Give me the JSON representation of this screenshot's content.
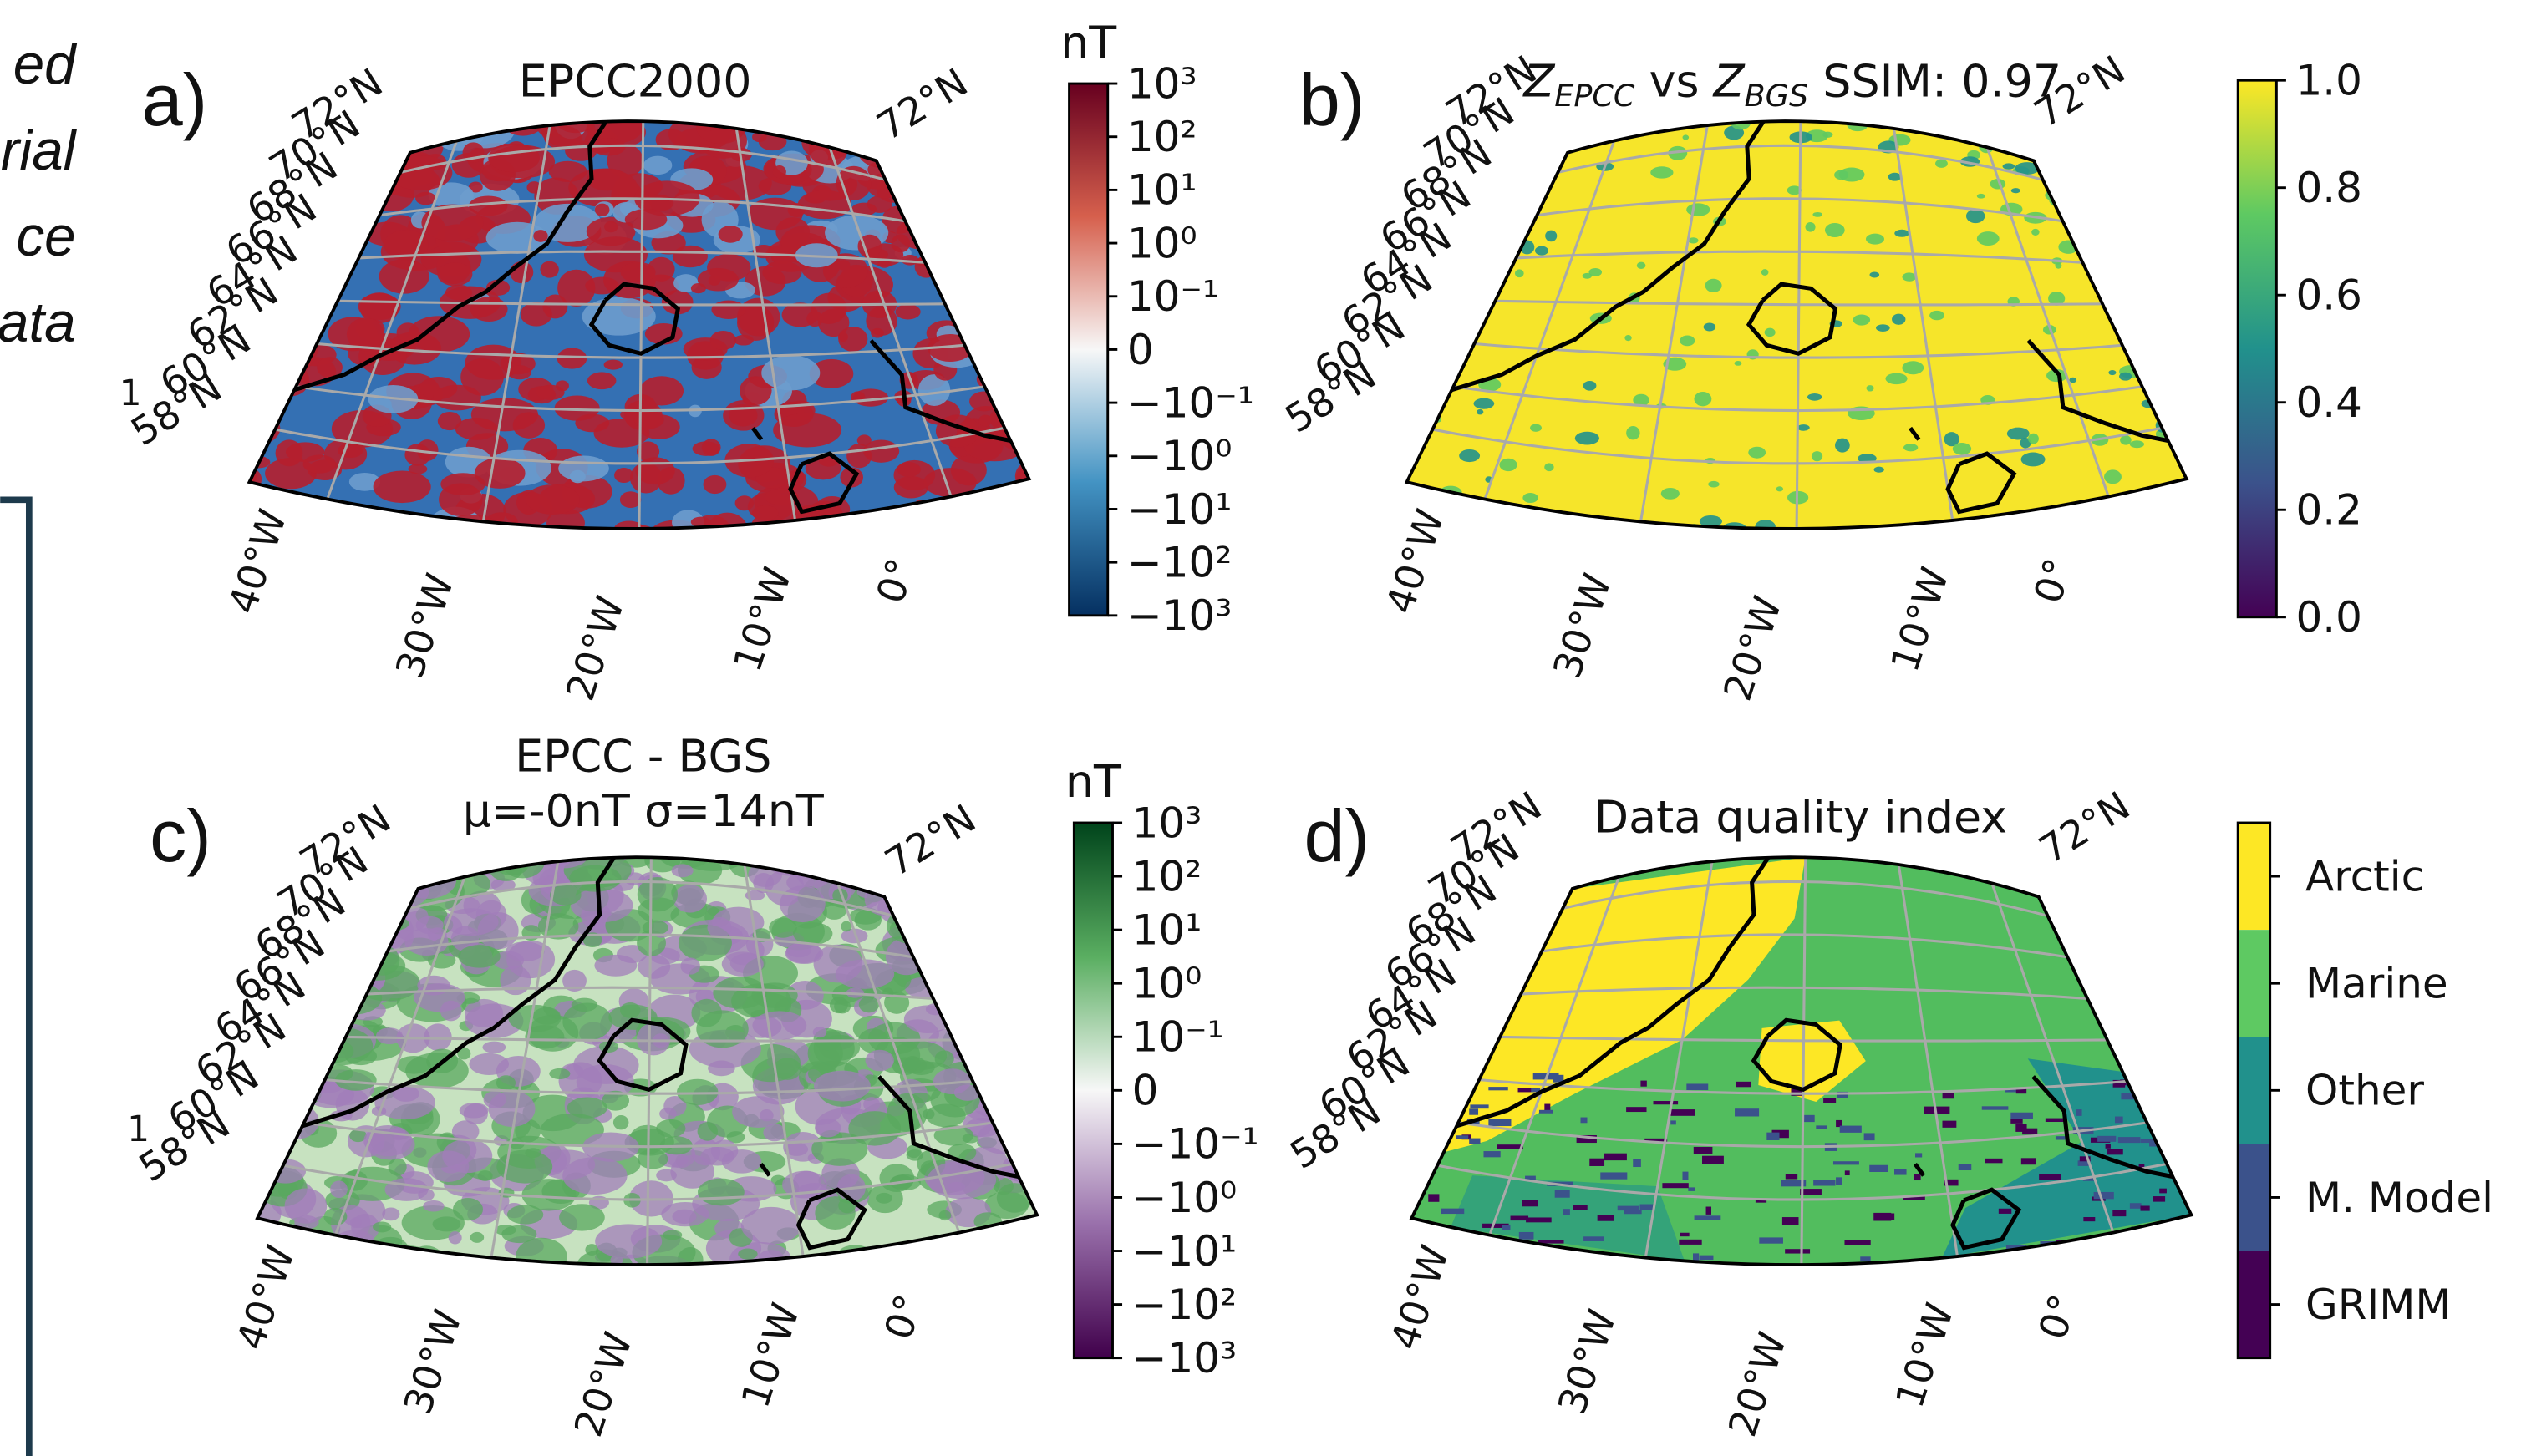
{
  "side_text": [
    "ed",
    "rial",
    "ce",
    "ata"
  ],
  "panels": [
    {
      "label": "a)",
      "title": [
        [
          {
            "text": "EPCC2000"
          }
        ]
      ],
      "stray": "1",
      "lat_labels": [
        "72°N",
        "70°N",
        "68°N",
        "66°N",
        "64°N",
        "62°N",
        "60°N",
        "58°N"
      ],
      "lat_label_right": "72°N",
      "lon_labels": [
        "40°W",
        "30°W",
        "20°W",
        "10°W",
        "0°"
      ],
      "map_colors": [
        "#3470b3",
        "#b51f2e",
        "#6d9ccd"
      ],
      "colorbar": {
        "label": "nT",
        "scale": "symlog",
        "lim": [
          -1000,
          1000
        ],
        "colors": [
          "#67001f",
          "#d6604d",
          "#f7f7f7",
          "#4393c3",
          "#053061"
        ],
        "ticks": [
          {
            "value": 1000,
            "label": "10³"
          },
          {
            "value": 100,
            "label": "10²"
          },
          {
            "value": 10,
            "label": "10¹"
          },
          {
            "value": 1,
            "label": "10⁰"
          },
          {
            "value": 0.1,
            "label": "10⁻¹"
          },
          0,
          {
            "value": -0.1,
            "label": "−10⁻¹"
          },
          {
            "value": -1,
            "label": "−10⁰"
          },
          {
            "value": -10,
            "label": "−10¹"
          },
          {
            "value": -100,
            "label": "−10²"
          },
          {
            "value": -1000,
            "label": "−10³"
          }
        ]
      }
    },
    {
      "label": "b)",
      "title": [
        [
          {
            "text": "Z",
            "style": "italic"
          },
          {
            "text": "EPCC",
            "style": "sub"
          },
          {
            "text": " vs "
          },
          {
            "text": "Z",
            "style": "italic"
          },
          {
            "text": "BGS",
            "style": "sub"
          },
          {
            "text": " SSIM: 0.97"
          }
        ]
      ],
      "lat_labels": [
        "72°N",
        "70°N",
        "68°N",
        "66°N",
        "64°N",
        "62°N",
        "60°N",
        "58°N"
      ],
      "lat_label_right": "72°N",
      "lon_labels": [
        "40°W",
        "30°W",
        "20°W",
        "10°W",
        "0°"
      ],
      "map_colors": [
        "#f6e52a",
        "#5ec962",
        "#21918c"
      ],
      "colorbar": {
        "label": null,
        "scale": "linear",
        "lim": [
          0,
          1
        ],
        "colors": [
          "#fde725",
          "#5ec962",
          "#21918c",
          "#3b528b",
          "#440154"
        ],
        "ticks": [
          {
            "value": 1,
            "label": "1.0"
          },
          0.8,
          0.6,
          0.4,
          0.2,
          {
            "value": 0,
            "label": "0.0"
          }
        ]
      }
    },
    {
      "label": "c)",
      "title": [
        [
          {
            "text": "EPCC - BGS"
          }
        ],
        [
          {
            "text": "μ=-0nT σ=14nT"
          }
        ]
      ],
      "stray": "1",
      "lat_labels": [
        "72°N",
        "70°N",
        "68°N",
        "66°N",
        "64°N",
        "62°N",
        "60°N",
        "58°N"
      ],
      "lat_label_right": "72°N",
      "lon_labels": [
        "40°W",
        "30°W",
        "20°W",
        "10°W",
        "0°"
      ],
      "map_colors": [
        "#c7e2c0",
        "#a27dba",
        "#5aa85f"
      ],
      "colorbar": {
        "label": "nT",
        "scale": "symlog",
        "lim": [
          -1000,
          1000
        ],
        "colors": [
          "#00441b",
          "#5aae61",
          "#f7f7f7",
          "#9970ab",
          "#40004b"
        ],
        "ticks": [
          {
            "value": 1000,
            "label": "10³"
          },
          {
            "value": 100,
            "label": "10²"
          },
          {
            "value": 10,
            "label": "10¹"
          },
          {
            "value": 1,
            "label": "10⁰"
          },
          {
            "value": 0.1,
            "label": "10⁻¹"
          },
          0,
          {
            "value": -0.1,
            "label": "−10⁻¹"
          },
          {
            "value": -1,
            "label": "−10⁰"
          },
          {
            "value": -10,
            "label": "−10¹"
          },
          {
            "value": -100,
            "label": "−10²"
          },
          {
            "value": -1000,
            "label": "−10³"
          }
        ]
      }
    },
    {
      "label": "d)",
      "title": [
        [
          {
            "text": "Data quality index"
          }
        ]
      ],
      "lat_labels": [
        "72°N",
        "70°N",
        "68°N",
        "66°N",
        "64°N",
        "62°N",
        "60°N",
        "58°N"
      ],
      "lat_label_right": "72°N",
      "lon_labels": [
        "40°W",
        "30°W",
        "20°W",
        "10°W",
        "0°"
      ],
      "map_colors": [
        "#52bd5e",
        "#fde725",
        "#21918c",
        "#3b528b",
        "#440154"
      ],
      "colorbar": {
        "label": null,
        "scale": "categorical",
        "categories": [
          "Arctic",
          "Marine",
          "Other",
          "M. Model",
          "GRIMM"
        ],
        "colors": [
          "#fde725",
          "#5ec962",
          "#21918c",
          "#3b528b",
          "#440154"
        ]
      }
    }
  ]
}
